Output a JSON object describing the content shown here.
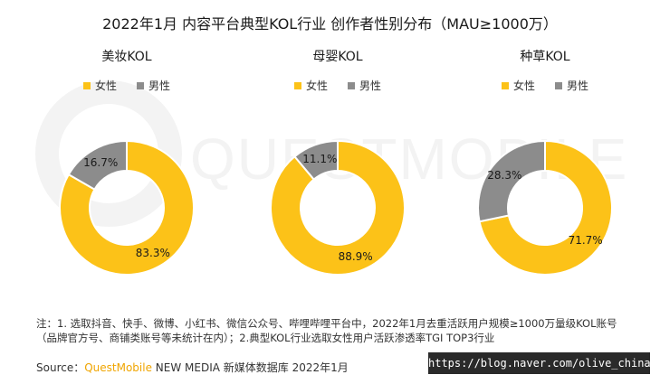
{
  "title": "2022年1月 内容平台典型KOL行业 创作者性别分布（MAU≥1000万）",
  "watermark": "QUESTMOBILE",
  "colors": {
    "female": "#FCC218",
    "male": "#8C8C8C"
  },
  "chart_data": [
    {
      "type": "pie",
      "title": "美妆KOL",
      "legend": [
        "女性",
        "男性"
      ],
      "series": [
        {
          "name": "女性",
          "value": 83.3,
          "label": "83.3%"
        },
        {
          "name": "男性",
          "value": 16.7,
          "label": "16.7%"
        }
      ]
    },
    {
      "type": "pie",
      "title": "母婴KOL",
      "legend": [
        "女性",
        "男性"
      ],
      "series": [
        {
          "name": "女性",
          "value": 88.9,
          "label": "88.9%"
        },
        {
          "name": "男性",
          "value": 11.1,
          "label": "11.1%"
        }
      ]
    },
    {
      "type": "pie",
      "title": "种草KOL",
      "legend": [
        "女性",
        "男性"
      ],
      "series": [
        {
          "name": "女性",
          "value": 71.7,
          "label": "71.7%"
        },
        {
          "name": "男性",
          "value": 28.3,
          "label": "28.3%"
        }
      ]
    }
  ],
  "note": "注：1. 选取抖音、快手、微博、小红书、微信公众号、哔哩哔哩平台中，2022年1月去重活跃用户规模≥1000万量级KOL账号（品牌官方号、商铺类账号等未统计在内）；2.典型KOL行业选取女性用户活跃渗透率TGI TOP3行业",
  "source": {
    "prefix": "Source：",
    "brand": "QuestMobile",
    "suffix": " NEW MEDIA 新媒体数据库 2022年1月"
  },
  "url_badge": "https://blog.naver.com/olive_china"
}
